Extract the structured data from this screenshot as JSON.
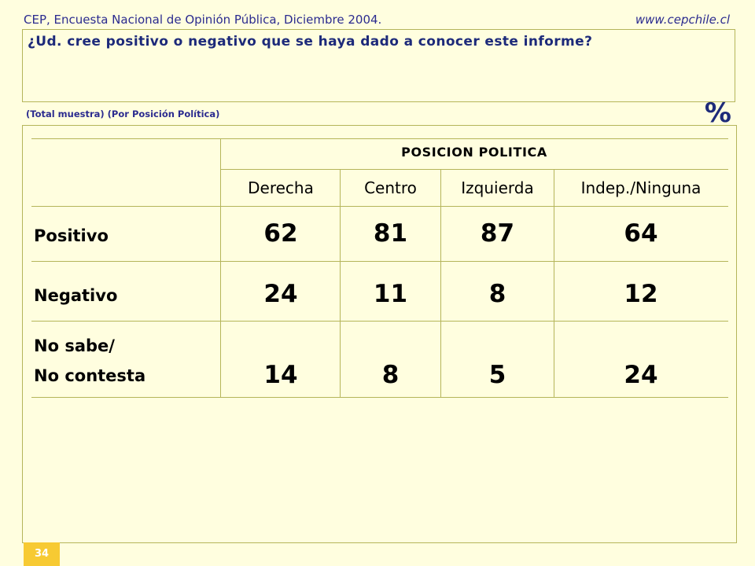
{
  "header": {
    "source": "CEP, Encuesta Nacional de Opinión Pública, Diciembre 2004.",
    "website": "www.cepchile.cl"
  },
  "question": "¿Ud. cree positivo o negativo que se haya dado a conocer este informe?",
  "subtitle": "(Total muestra) (Por Posición Política)",
  "unit_label": "%",
  "table": {
    "group_header": "POSICION POLITICA",
    "columns": [
      "Derecha",
      "Centro",
      "Izquierda",
      "Indep./Ninguna"
    ],
    "rows": [
      {
        "label": "Positivo",
        "values": [
          "62",
          "81",
          "87",
          "64"
        ]
      },
      {
        "label": "Negativo",
        "values": [
          "24",
          "11",
          "8",
          "12"
        ]
      },
      {
        "label_line1": "No sabe/",
        "label_line2": "No contesta",
        "values": [
          "14",
          "8",
          "5",
          "24"
        ]
      }
    ]
  },
  "page_number": "34"
}
